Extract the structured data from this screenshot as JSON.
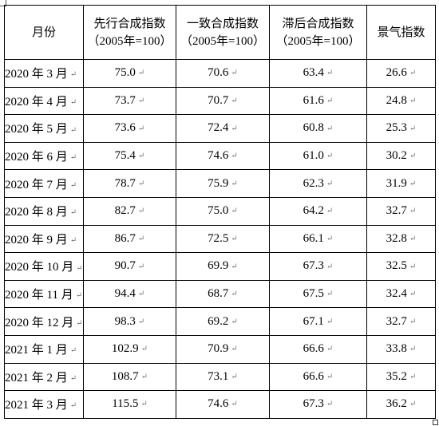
{
  "table": {
    "headers": [
      {
        "lines": [
          "月份"
        ]
      },
      {
        "lines": [
          "先行合成指数",
          "（2005年=100）"
        ]
      },
      {
        "lines": [
          "一致合成指数",
          "（2005年=100）"
        ]
      },
      {
        "lines": [
          "滞后合成指数",
          "（2005年=100）"
        ]
      },
      {
        "lines": [
          "景气指数"
        ]
      }
    ],
    "rows": [
      [
        "2020 年 3 月",
        "75.0",
        "70.6",
        "63.4",
        "26.6"
      ],
      [
        "2020 年 4 月",
        "73.7",
        "70.7",
        "61.6",
        "24.8"
      ],
      [
        "2020 年 5 月",
        "73.6",
        "72.4",
        "60.8",
        "25.3"
      ],
      [
        "2020 年 6 月",
        "75.4",
        "74.6",
        "61.0",
        "30.2"
      ],
      [
        "2020 年 7 月",
        "78.7",
        "75.9",
        "62.3",
        "31.9"
      ],
      [
        "2020 年 8 月",
        "82.7",
        "75.0",
        "64.2",
        "32.7"
      ],
      [
        "2020 年 9 月",
        "86.7",
        "72.5",
        "66.1",
        "32.8"
      ],
      [
        "2020 年 10 月",
        "90.7",
        "69.9",
        "67.3",
        "32.5"
      ],
      [
        "2020 年 11 月",
        "94.4",
        "68.7",
        "67.5",
        "32.4"
      ],
      [
        "2020 年 12 月",
        "98.3",
        "69.2",
        "67.1",
        "32.7"
      ],
      [
        "2021 年 1 月",
        "102.9",
        "70.9",
        "66.6",
        "33.8"
      ],
      [
        "2021 年 2 月",
        "108.7",
        "73.1",
        "66.6",
        "35.2"
      ],
      [
        "2021 年 3 月",
        "115.5",
        "74.6",
        "67.3",
        "36.2"
      ]
    ]
  }
}
